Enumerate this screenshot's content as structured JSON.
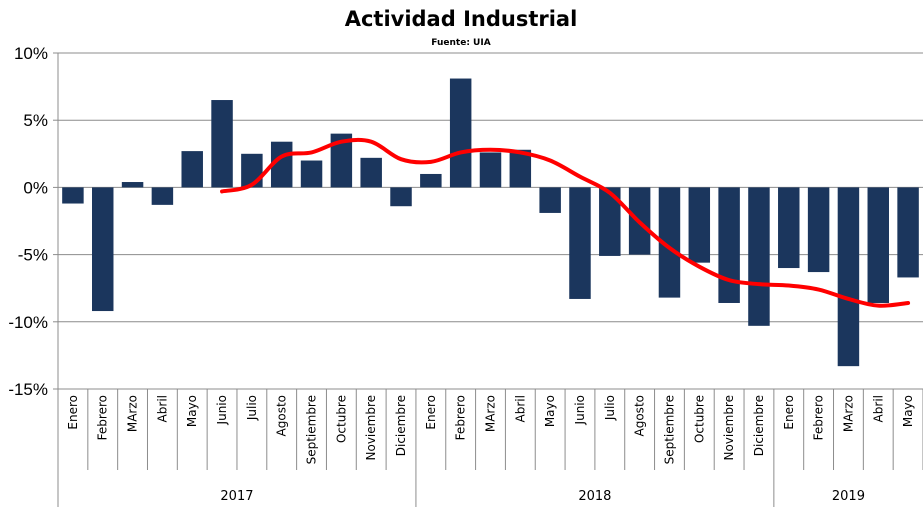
{
  "chart_data": {
    "type": "bar",
    "title": "Actividad Industrial",
    "subtitle": "Fuente: UIA",
    "xlabel": "",
    "ylabel": "",
    "ylim": [
      -15,
      10
    ],
    "yticks": [
      "10%",
      "5%",
      "0%",
      "-5%",
      "-10%",
      "-15%"
    ],
    "ytick_values": [
      10,
      5,
      0,
      -5,
      -10,
      -15
    ],
    "grid": true,
    "legend": "none",
    "categories": [
      "Enero",
      "Febrero",
      "MArzo",
      "Abril",
      "Mayo",
      "Junio",
      "Julio",
      "Agosto",
      "Septiembre",
      "Octubre",
      "Noviembre",
      "Diciembre",
      "Enero",
      "Febrero",
      "MArzo",
      "Abril",
      "Mayo",
      "Junio",
      "Julio",
      "Agosto",
      "Septiembre",
      "Octubre",
      "Noviembre",
      "Diciembre",
      "Enero",
      "Febrero",
      "MArzo",
      "Abril",
      "Mayo"
    ],
    "years": [
      {
        "label": "2017",
        "start": 0,
        "end": 11
      },
      {
        "label": "2018",
        "start": 12,
        "end": 23
      },
      {
        "label": "2019",
        "start": 24,
        "end": 28
      }
    ],
    "series": [
      {
        "type": "bar",
        "color": "#1b365d",
        "values": [
          -1.2,
          -9.2,
          0.4,
          -1.3,
          2.7,
          6.5,
          2.5,
          3.4,
          2.0,
          4.0,
          2.2,
          -1.4,
          1.0,
          8.1,
          2.6,
          2.8,
          -1.9,
          -8.3,
          -5.1,
          -5.0,
          -8.2,
          -5.6,
          -8.6,
          -10.3,
          -6.0,
          -6.3,
          -13.3,
          -8.6,
          -6.7
        ]
      },
      {
        "type": "line",
        "color": "#ff0000",
        "values": [
          null,
          null,
          null,
          null,
          null,
          -0.3,
          0.2,
          2.3,
          2.6,
          3.4,
          3.4,
          2.1,
          1.9,
          2.6,
          2.8,
          2.6,
          2.0,
          0.8,
          -0.4,
          -2.6,
          -4.5,
          -5.9,
          -6.9,
          -7.2,
          -7.3,
          -7.6,
          -8.3,
          -8.8,
          -8.6
        ]
      }
    ]
  }
}
